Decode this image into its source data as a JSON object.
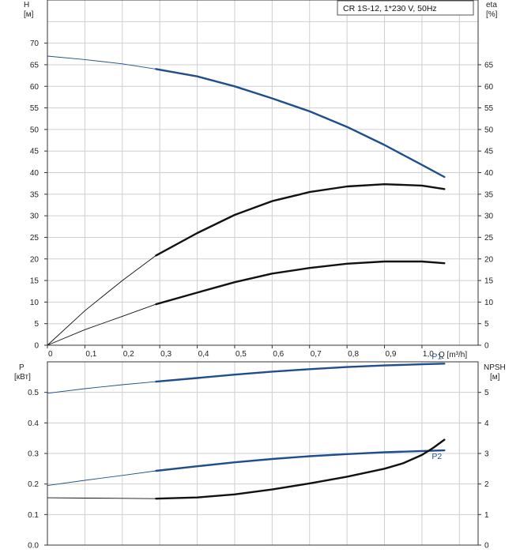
{
  "chart_data": [
    {
      "type": "line",
      "id": "head-efficiency",
      "title": "CR 1S-12, 1*230 V, 50Hz",
      "x_axis": {
        "label": "Q [m³/h]",
        "range": [
          0,
          1.15
        ],
        "ticks": [
          "0",
          "0,1",
          "0,2",
          "0,3",
          "0,4",
          "0,5",
          "0,6",
          "0,7",
          "0,8",
          "0,9",
          "1,0"
        ],
        "tick_values": [
          0,
          0.1,
          0.2,
          0.3,
          0.4,
          0.5,
          0.6,
          0.7,
          0.8,
          0.9,
          1.0
        ]
      },
      "y_axis_left": {
        "label_line1": "H",
        "label_line2": "[м]",
        "range": [
          0,
          80
        ],
        "ticks": [
          0,
          5,
          10,
          15,
          20,
          25,
          30,
          35,
          40,
          45,
          50,
          55,
          60,
          65,
          70
        ]
      },
      "y_axis_right": {
        "label_line1": "eta",
        "label_line2": "[%]",
        "range": [
          0,
          80
        ],
        "ticks": [
          0,
          5,
          10,
          15,
          20,
          25,
          30,
          35,
          40,
          45,
          50,
          55,
          60,
          65
        ]
      },
      "series": [
        {
          "id": "head",
          "color": "#1f4e8c",
          "axis": "left",
          "thin_x": [
            0.0,
            0.1,
            0.2,
            0.29
          ],
          "thin_y": [
            67.0,
            66.2,
            65.2,
            64.0
          ],
          "x": [
            0.29,
            0.4,
            0.5,
            0.6,
            0.7,
            0.8,
            0.9,
            1.0,
            1.06
          ],
          "y": [
            64.0,
            62.3,
            60.0,
            57.2,
            54.2,
            50.6,
            46.4,
            41.8,
            39.0
          ]
        },
        {
          "id": "efficiency-total",
          "color": "#111111",
          "axis": "right",
          "thin_x": [
            0.0,
            0.1,
            0.2,
            0.29
          ],
          "thin_y": [
            0.0,
            8.0,
            15.0,
            20.8
          ],
          "x": [
            0.29,
            0.4,
            0.5,
            0.6,
            0.7,
            0.8,
            0.9,
            1.0,
            1.06
          ],
          "y": [
            20.8,
            26.0,
            30.2,
            33.4,
            35.5,
            36.8,
            37.3,
            37.0,
            36.2
          ]
        },
        {
          "id": "efficiency-hydraulic",
          "color": "#111111",
          "axis": "right",
          "thin_x": [
            0.0,
            0.1,
            0.2,
            0.29
          ],
          "thin_y": [
            0.0,
            3.6,
            6.7,
            9.5
          ],
          "x": [
            0.29,
            0.4,
            0.5,
            0.6,
            0.7,
            0.8,
            0.9,
            1.0,
            1.06
          ],
          "y": [
            9.5,
            12.2,
            14.6,
            16.6,
            17.9,
            18.9,
            19.4,
            19.4,
            19.0
          ]
        }
      ]
    },
    {
      "type": "line",
      "id": "power-npsh",
      "x_axis": {
        "range": [
          0,
          1.15
        ]
      },
      "y_axis_left": {
        "label_line1": "P",
        "label_line2": "[кВт]",
        "range": [
          0,
          0.6
        ],
        "ticks": [
          "0.0",
          "0.1",
          "0.2",
          "0.3",
          "0.4",
          "0.5"
        ],
        "tick_values": [
          0.0,
          0.1,
          0.2,
          0.3,
          0.4,
          0.5
        ]
      },
      "y_axis_right": {
        "label_line1": "NPSH",
        "label_line2": "[м]",
        "range": [
          0,
          6
        ],
        "ticks": [
          0,
          1,
          2,
          3,
          4,
          5
        ]
      },
      "series": [
        {
          "id": "P1",
          "name": "P1",
          "color": "#1f4e8c",
          "axis": "left",
          "thin_x": [
            0.0,
            0.1,
            0.2,
            0.29
          ],
          "thin_y": [
            0.497,
            0.512,
            0.525,
            0.535
          ],
          "x": [
            0.29,
            0.4,
            0.5,
            0.6,
            0.7,
            0.8,
            0.9,
            1.0,
            1.06
          ],
          "y": [
            0.535,
            0.547,
            0.558,
            0.568,
            0.576,
            0.583,
            0.588,
            0.592,
            0.594
          ]
        },
        {
          "id": "P2",
          "name": "P2",
          "color": "#1f4e8c",
          "axis": "left",
          "thin_x": [
            0.0,
            0.1,
            0.2,
            0.29
          ],
          "thin_y": [
            0.195,
            0.212,
            0.228,
            0.243
          ],
          "x": [
            0.29,
            0.4,
            0.5,
            0.6,
            0.7,
            0.8,
            0.9,
            1.0,
            1.06
          ],
          "y": [
            0.243,
            0.258,
            0.271,
            0.282,
            0.291,
            0.298,
            0.304,
            0.308,
            0.31
          ]
        },
        {
          "id": "NPSH",
          "color": "#111111",
          "axis": "right",
          "thin_x": [
            0.0,
            0.1,
            0.2,
            0.29
          ],
          "thin_y": [
            1.55,
            1.54,
            1.53,
            1.52
          ],
          "x": [
            0.29,
            0.4,
            0.5,
            0.6,
            0.7,
            0.8,
            0.9,
            0.95,
            1.0,
            1.03,
            1.06
          ],
          "y": [
            1.52,
            1.56,
            1.66,
            1.82,
            2.02,
            2.24,
            2.5,
            2.68,
            2.95,
            3.18,
            3.45
          ]
        }
      ]
    }
  ]
}
